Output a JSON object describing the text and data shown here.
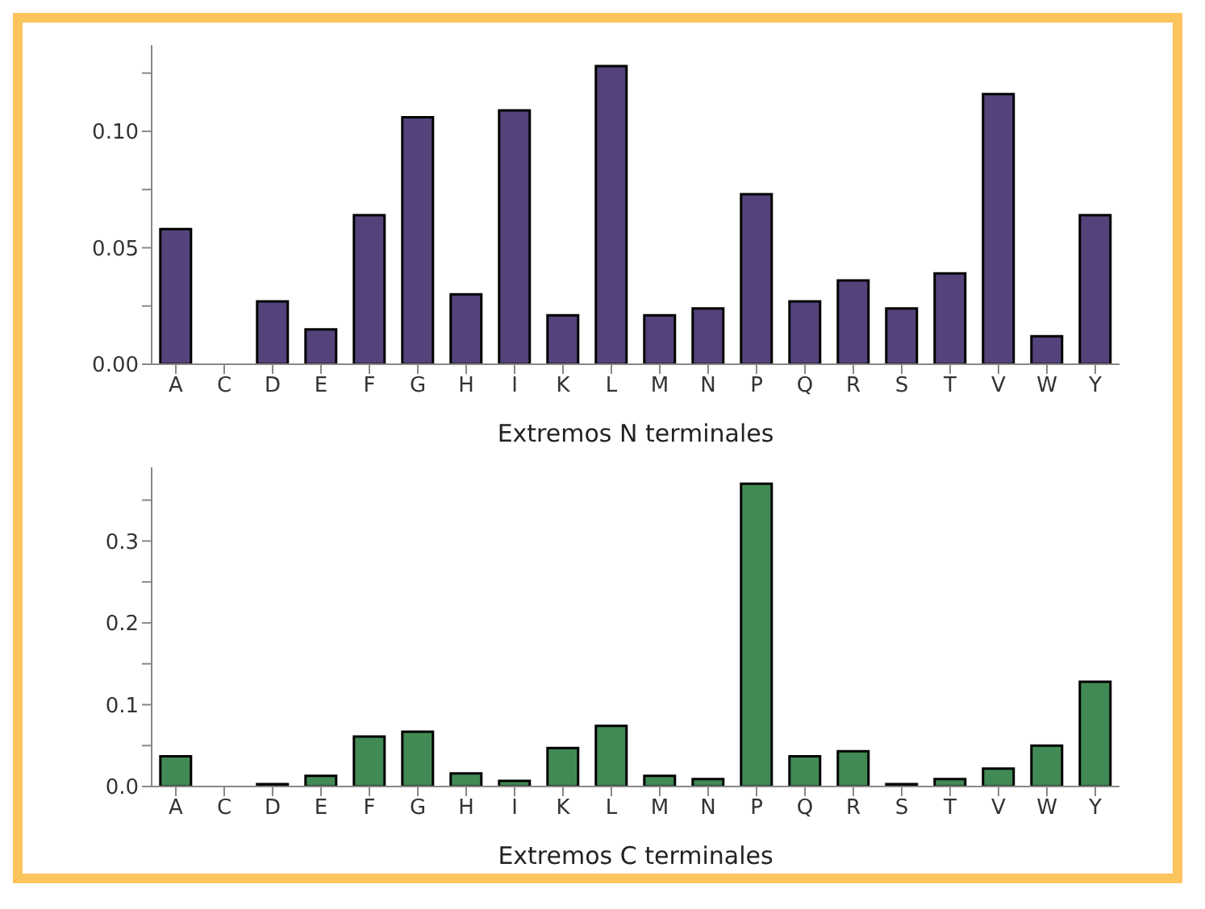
{
  "chart_data": [
    {
      "type": "bar",
      "xlabel": "Extremos N terminales",
      "categories": [
        "A",
        "C",
        "D",
        "E",
        "F",
        "G",
        "H",
        "I",
        "K",
        "L",
        "M",
        "N",
        "P",
        "Q",
        "R",
        "S",
        "T",
        "V",
        "W",
        "Y"
      ],
      "values": [
        0.058,
        0,
        0.027,
        0.015,
        0.064,
        0.106,
        0.03,
        0.109,
        0.021,
        0.128,
        0.021,
        0.024,
        0.073,
        0.027,
        0.036,
        0.024,
        0.039,
        0.116,
        0.012,
        0.064
      ],
      "color": "#54437a",
      "ylim": [
        0,
        0.137
      ],
      "yticks": [
        {
          "value": 0,
          "label": "0.00"
        },
        {
          "value": 0.025,
          "label": null
        },
        {
          "value": 0.05,
          "label": "0.05"
        },
        {
          "value": 0.075,
          "label": null
        },
        {
          "value": 0.1,
          "label": "0.10"
        },
        {
          "value": 0.125,
          "label": null
        }
      ],
      "grid": false,
      "legend": false
    },
    {
      "type": "bar",
      "xlabel": "Extremos C terminales",
      "categories": [
        "A",
        "C",
        "D",
        "E",
        "F",
        "G",
        "H",
        "I",
        "K",
        "L",
        "M",
        "N",
        "P",
        "Q",
        "R",
        "S",
        "T",
        "V",
        "W",
        "Y"
      ],
      "values": [
        0.037,
        0,
        0.003,
        0.013,
        0.061,
        0.067,
        0.016,
        0.007,
        0.047,
        0.074,
        0.013,
        0.009,
        0.37,
        0.037,
        0.043,
        0.003,
        0.009,
        0.022,
        0.05,
        0.128
      ],
      "color": "#428a55",
      "ylim": [
        0,
        0.39
      ],
      "yticks": [
        {
          "value": 0,
          "label": "0.0"
        },
        {
          "value": 0.05,
          "label": null
        },
        {
          "value": 0.1,
          "label": "0.1"
        },
        {
          "value": 0.15,
          "label": null
        },
        {
          "value": 0.2,
          "label": "0.2"
        },
        {
          "value": 0.25,
          "label": null
        },
        {
          "value": 0.3,
          "label": "0.3"
        },
        {
          "value": 0.35,
          "label": null
        }
      ],
      "grid": false,
      "legend": false
    }
  ]
}
